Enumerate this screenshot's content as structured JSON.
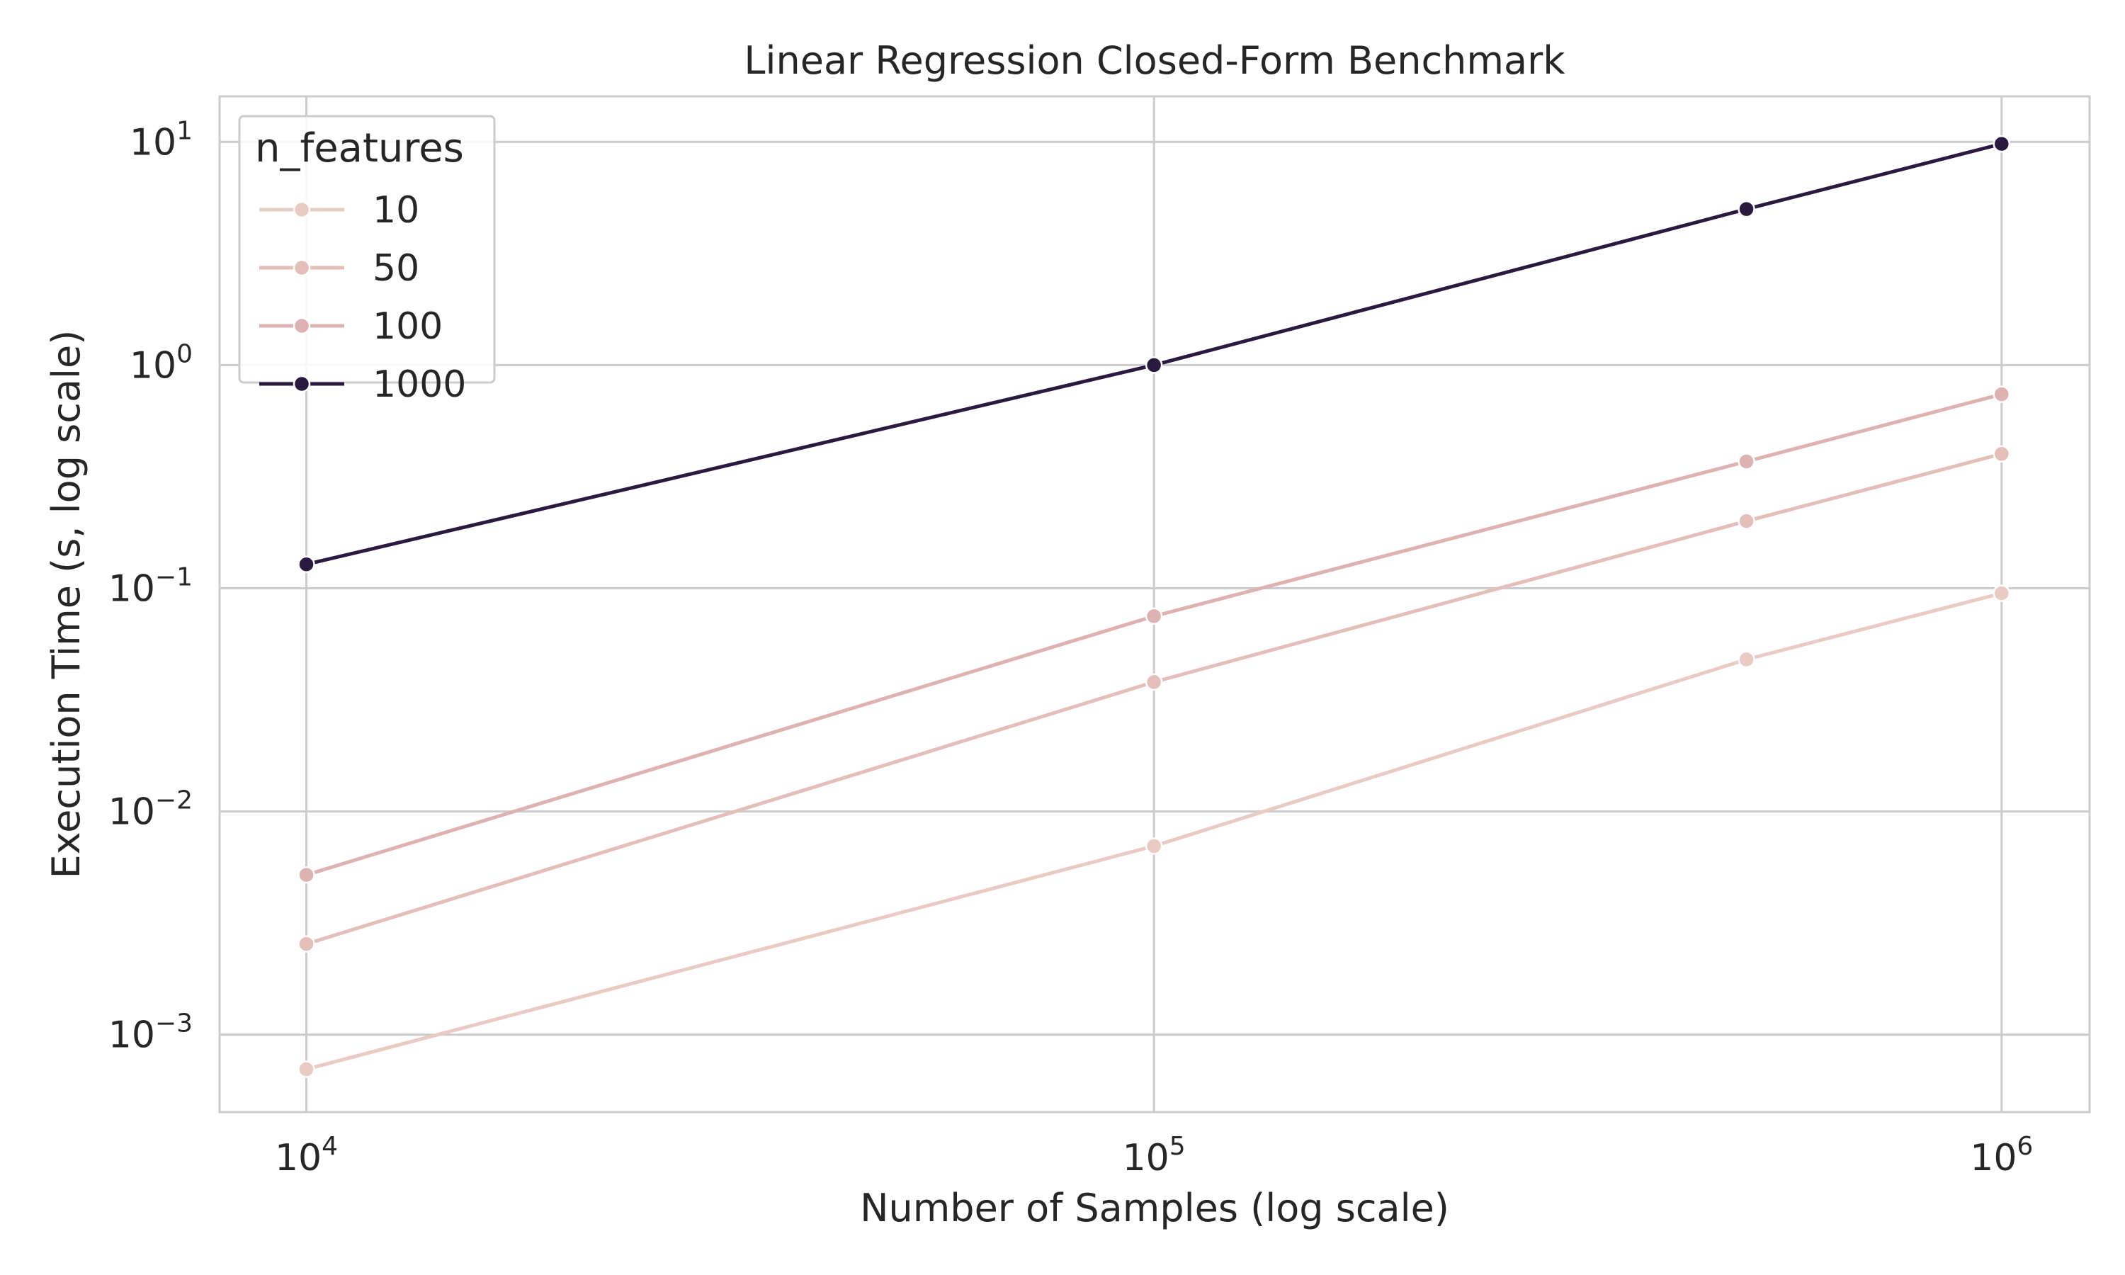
{
  "chart_data": {
    "type": "line",
    "title": "Linear Regression Closed-Form Benchmark",
    "xlabel": "Number of Samples (log scale)",
    "ylabel": "Execution Time (s, log scale)",
    "xscale": "log",
    "yscale": "log",
    "xlim": [
      7900,
      1270000
    ],
    "ylim": [
      0.00045,
      16
    ],
    "grid": true,
    "legend": {
      "title": "n_features",
      "placement": "top-left"
    },
    "x": [
      10000,
      100000,
      500000,
      1000000
    ],
    "xticks": [
      {
        "value": 10000,
        "base": "10",
        "exp": "4"
      },
      {
        "value": 100000,
        "base": "10",
        "exp": "5"
      },
      {
        "value": 1000000,
        "base": "10",
        "exp": "6"
      }
    ],
    "yticks": [
      {
        "value": 0.001,
        "base": "10",
        "exp": "−3"
      },
      {
        "value": 0.01,
        "base": "10",
        "exp": "−2"
      },
      {
        "value": 0.1,
        "base": "10",
        "exp": "−1"
      },
      {
        "value": 1,
        "base": "10",
        "exp": "0"
      },
      {
        "value": 10,
        "base": "10",
        "exp": "1"
      }
    ],
    "series": [
      {
        "name": "10",
        "color": "#eacbc4",
        "values": [
          0.0007,
          0.007,
          0.048,
          0.095
        ]
      },
      {
        "name": "50",
        "color": "#e4bfba",
        "values": [
          0.00255,
          0.038,
          0.2,
          0.4
        ]
      },
      {
        "name": "100",
        "color": "#ddb2b1",
        "values": [
          0.0052,
          0.075,
          0.37,
          0.74
        ]
      },
      {
        "name": "1000",
        "color": "#2b1a3f",
        "values": [
          0.128,
          1.0,
          5.0,
          9.8
        ]
      }
    ]
  }
}
